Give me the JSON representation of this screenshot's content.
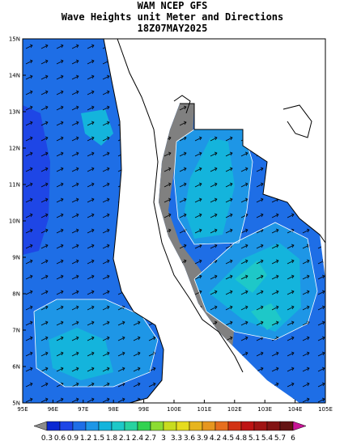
{
  "title": [
    "WAM NCEP GFS",
    "Wave Heights unit Meter and Directions",
    "18Z07MAY2025"
  ],
  "lat_labels": [
    "15N",
    "14N",
    "13N",
    "12N",
    "11N",
    "10N",
    "9N",
    "8N",
    "7N",
    "6N",
    "5N"
  ],
  "lon_labels": [
    "95E",
    "96E",
    "97E",
    "98E",
    "99E",
    "100E",
    "101E",
    "102E",
    "103E",
    "104E",
    "105E"
  ],
  "colorbar": {
    "labels": [
      0.3,
      0.6,
      0.9,
      1.2,
      1.5,
      1.8,
      2.1,
      2.4,
      2.7,
      3,
      3.3,
      3.6,
      3.9,
      4.2,
      4.5,
      4.8,
      5.1,
      5.4,
      5.7,
      6
    ],
    "colors": [
      "#8c8c8c",
      "#0a28d2",
      "#1e46e6",
      "#1e6ee6",
      "#1e96e6",
      "#14b4dc",
      "#1ec8c8",
      "#28d2a0",
      "#32d250",
      "#8cdc32",
      "#c8dc1e",
      "#e6dc1e",
      "#e6b41e",
      "#e6961e",
      "#e66e1e",
      "#d23214",
      "#be1414",
      "#a01414",
      "#821414",
      "#641414",
      "#c81496"
    ]
  }
}
